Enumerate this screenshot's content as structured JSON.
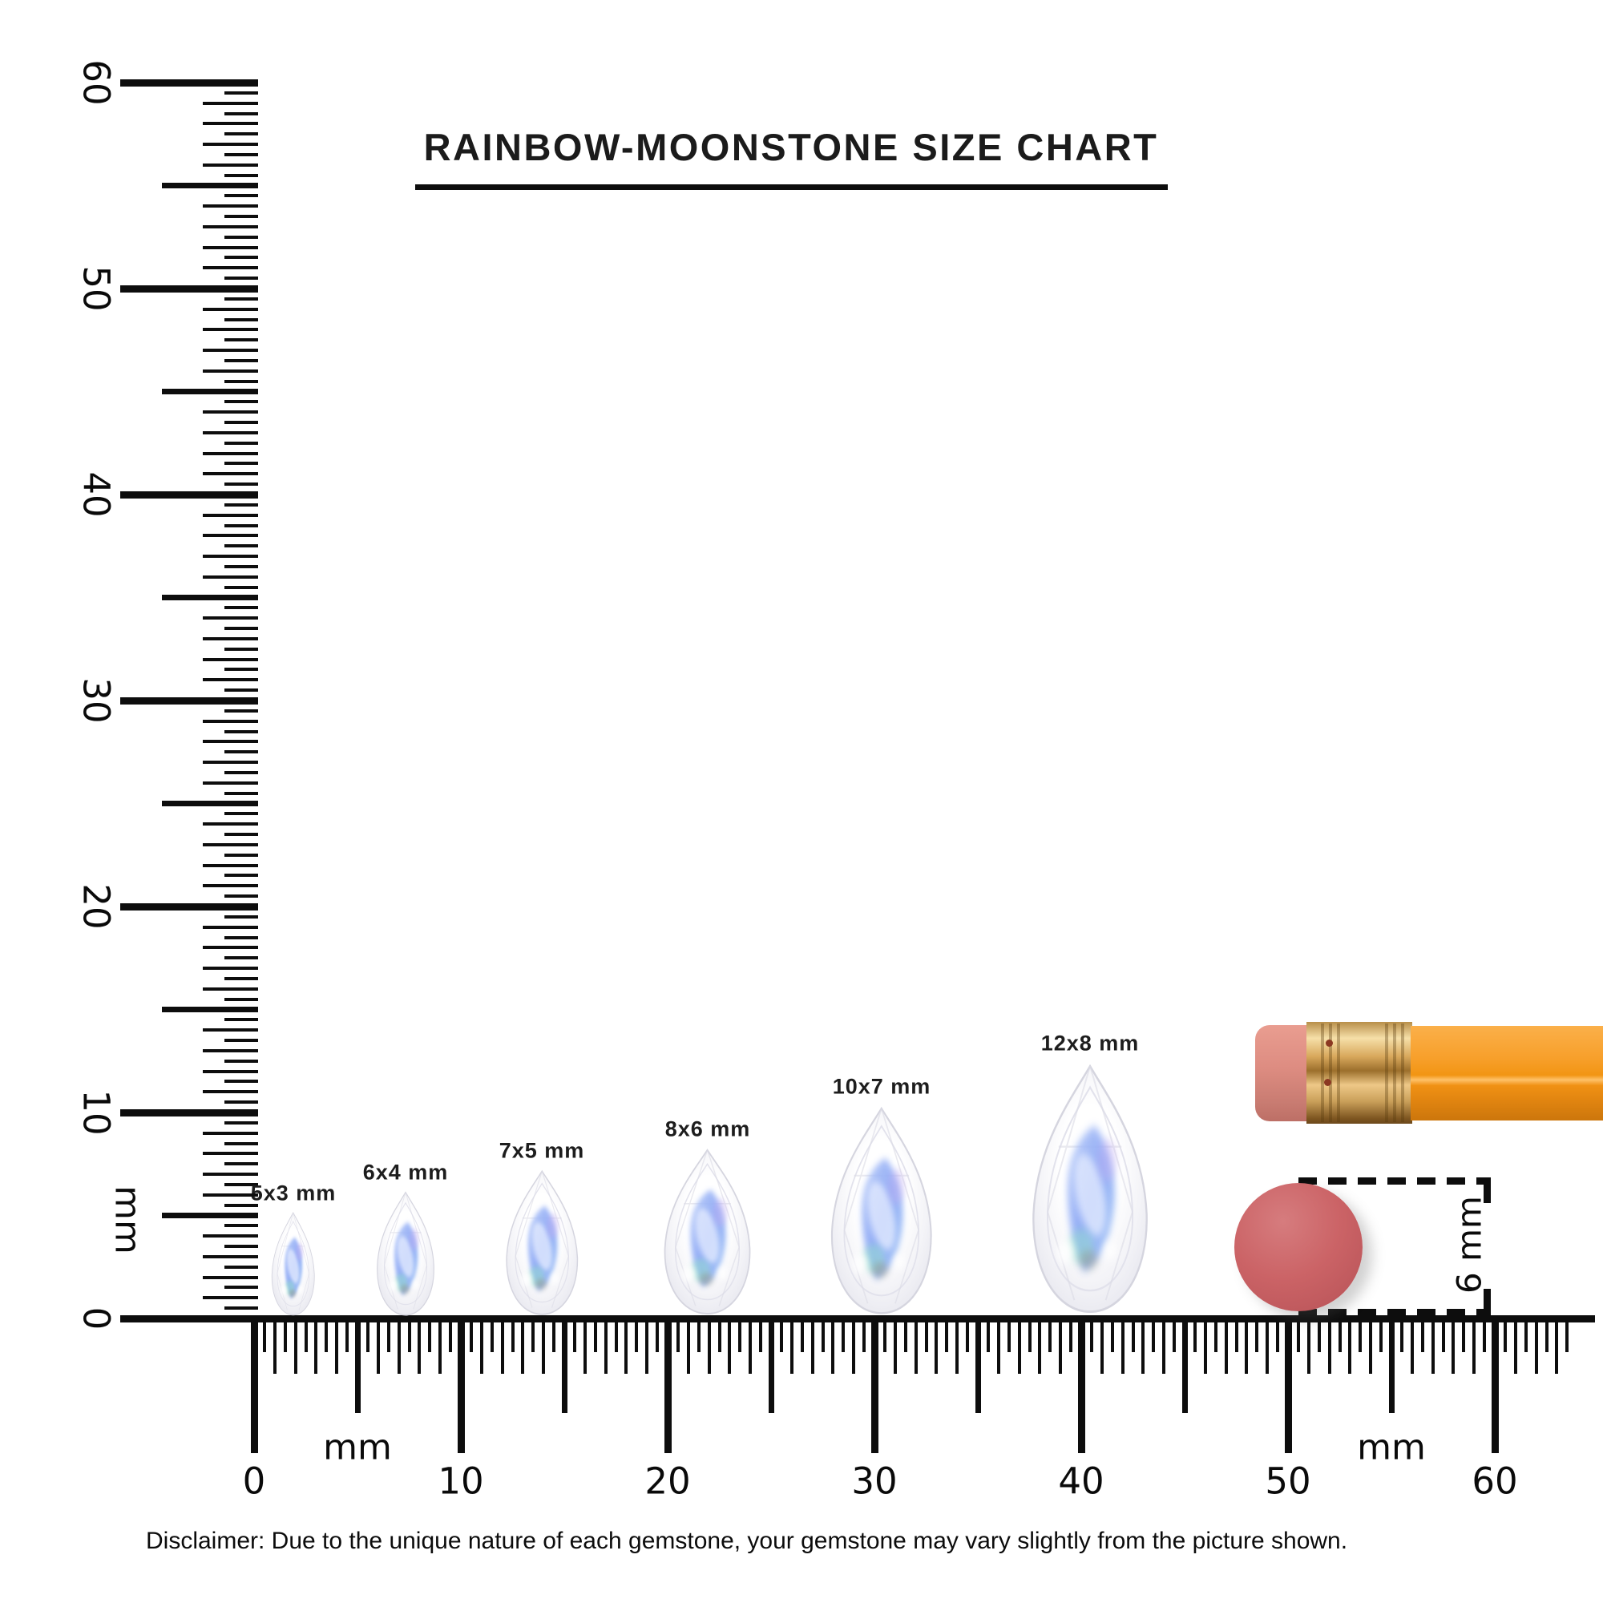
{
  "title": "RAINBOW-MOONSTONE SIZE CHART",
  "vertical_ruler": {
    "unit": "mm",
    "numbers": [
      "60",
      "50",
      "40",
      "30",
      "20",
      "10",
      "0"
    ]
  },
  "horizontal_ruler": {
    "unit_left": "mm",
    "unit_right": "mm",
    "numbers": [
      "0",
      "10",
      "20",
      "30",
      "40",
      "50",
      "60"
    ]
  },
  "gems": [
    {
      "label": "5x3 mm",
      "length_mm": 5,
      "width_mm": 3
    },
    {
      "label": "6x4 mm",
      "length_mm": 6,
      "width_mm": 4
    },
    {
      "label": "7x5 mm",
      "length_mm": 7,
      "width_mm": 5
    },
    {
      "label": "8x6 mm",
      "length_mm": 8,
      "width_mm": 6
    },
    {
      "label": "10x7 mm",
      "length_mm": 10,
      "width_mm": 7
    },
    {
      "label": "12x8 mm",
      "length_mm": 12,
      "width_mm": 8
    }
  ],
  "reference_objects": {
    "circle_diameter_label": "6 mm",
    "circle_color": "#ca6164",
    "pencil_icon": "pencil-icon"
  },
  "colors": {
    "ink": "#111111",
    "pencil_orange": "#f59a1f",
    "eraser_pink": "#d98d83",
    "ferrule_gold": "#d8a55e",
    "gem_blue": "#8aa6f5"
  },
  "disclaimer": "Disclaimer: Due to the unique nature of each gemstone, your gemstone may vary slightly from the picture shown."
}
